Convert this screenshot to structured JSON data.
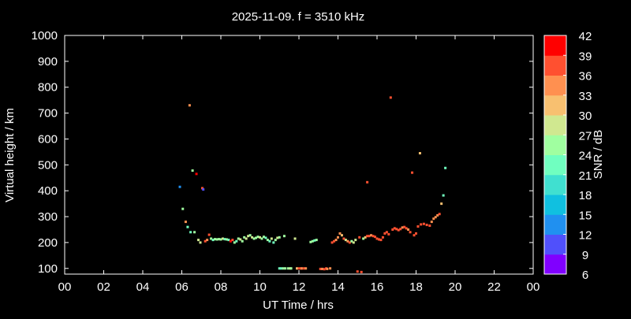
{
  "chart_data": {
    "type": "scatter",
    "title": "2025-11-09. f = 3510 kHz",
    "xlabel": "UT Time / hrs",
    "ylabel": "Virtual height / km",
    "xlim": [
      0,
      24
    ],
    "ylim": [
      78,
      1000
    ],
    "x_ticks": [
      "00",
      "02",
      "04",
      "06",
      "08",
      "10",
      "12",
      "14",
      "16",
      "18",
      "20",
      "22",
      "00"
    ],
    "y_ticks": [
      100,
      200,
      300,
      400,
      500,
      600,
      700,
      800,
      900,
      1000
    ],
    "colorbar": {
      "label": "SNR / dB",
      "ticks": [
        6,
        9,
        12,
        15,
        18,
        21,
        24,
        27,
        30,
        33,
        36,
        39,
        42
      ],
      "min": 6,
      "max": 42,
      "colors": [
        "#8000ff",
        "#5050fb",
        "#2090f0",
        "#10c0e0",
        "#40e0d0",
        "#70ffc0",
        "#a0ffa0",
        "#d0e890",
        "#f8c070",
        "#ff9050",
        "#ff5030",
        "#ff0000"
      ]
    },
    "grid": false,
    "points": [
      [
        5.9,
        415,
        14
      ],
      [
        6.05,
        330,
        24
      ],
      [
        6.2,
        280,
        33
      ],
      [
        6.3,
        260,
        22
      ],
      [
        6.4,
        730,
        33
      ],
      [
        6.45,
        240,
        22
      ],
      [
        6.55,
        478,
        24
      ],
      [
        6.65,
        240,
        24
      ],
      [
        6.75,
        465,
        40
      ],
      [
        6.85,
        210,
        27
      ],
      [
        6.95,
        200,
        27
      ],
      [
        7.05,
        410,
        36
      ],
      [
        7.1,
        405,
        9
      ],
      [
        7.2,
        205,
        38
      ],
      [
        7.3,
        210,
        33
      ],
      [
        7.4,
        230,
        36
      ],
      [
        7.5,
        215,
        24
      ],
      [
        7.6,
        210,
        22
      ],
      [
        7.7,
        213,
        24
      ],
      [
        7.8,
        212,
        24
      ],
      [
        7.9,
        213,
        24
      ],
      [
        8.0,
        212,
        24
      ],
      [
        8.1,
        215,
        27
      ],
      [
        8.2,
        213,
        22
      ],
      [
        8.3,
        212,
        24
      ],
      [
        8.4,
        210,
        22
      ],
      [
        8.5,
        205,
        40
      ],
      [
        8.6,
        210,
        36
      ],
      [
        8.7,
        200,
        24
      ],
      [
        8.8,
        205,
        22
      ],
      [
        8.9,
        215,
        24
      ],
      [
        9.0,
        212,
        27
      ],
      [
        9.1,
        205,
        24
      ],
      [
        9.2,
        220,
        24
      ],
      [
        9.3,
        215,
        27
      ],
      [
        9.4,
        225,
        27
      ],
      [
        9.5,
        228,
        24
      ],
      [
        9.6,
        220,
        27
      ],
      [
        9.7,
        215,
        24
      ],
      [
        9.8,
        218,
        24
      ],
      [
        9.9,
        222,
        24
      ],
      [
        10.0,
        220,
        27
      ],
      [
        10.1,
        215,
        24
      ],
      [
        10.2,
        222,
        24
      ],
      [
        10.3,
        218,
        22
      ],
      [
        10.4,
        210,
        24
      ],
      [
        10.5,
        205,
        22
      ],
      [
        10.6,
        215,
        27
      ],
      [
        10.7,
        200,
        21
      ],
      [
        10.8,
        210,
        24
      ],
      [
        10.9,
        218,
        27
      ],
      [
        11.0,
        220,
        24
      ],
      [
        11.0,
        100,
        22
      ],
      [
        11.1,
        100,
        22
      ],
      [
        11.2,
        100,
        24
      ],
      [
        11.25,
        225,
        24
      ],
      [
        11.3,
        100,
        24
      ],
      [
        11.45,
        100,
        24
      ],
      [
        11.55,
        100,
        27
      ],
      [
        11.6,
        100,
        24
      ],
      [
        11.8,
        215,
        27
      ],
      [
        11.9,
        100,
        30
      ],
      [
        12.0,
        100,
        36
      ],
      [
        12.1,
        100,
        38
      ],
      [
        12.15,
        100,
        33
      ],
      [
        12.25,
        100,
        36
      ],
      [
        12.35,
        100,
        33
      ],
      [
        12.6,
        202,
        24
      ],
      [
        12.7,
        205,
        24
      ],
      [
        12.8,
        208,
        22
      ],
      [
        12.9,
        210,
        24
      ],
      [
        13.1,
        98,
        36
      ],
      [
        13.2,
        98,
        33
      ],
      [
        13.3,
        97,
        38
      ],
      [
        13.4,
        100,
        36
      ],
      [
        13.45,
        98,
        33
      ],
      [
        13.6,
        100,
        33
      ],
      [
        13.7,
        200,
        36
      ],
      [
        13.8,
        205,
        38
      ],
      [
        13.9,
        210,
        33
      ],
      [
        14.0,
        220,
        33
      ],
      [
        14.1,
        235,
        33
      ],
      [
        14.2,
        228,
        30
      ],
      [
        14.3,
        215,
        36
      ],
      [
        14.4,
        210,
        27
      ],
      [
        14.5,
        205,
        33
      ],
      [
        14.6,
        200,
        36
      ],
      [
        14.7,
        205,
        24
      ],
      [
        14.8,
        200,
        27
      ],
      [
        14.9,
        210,
        27
      ],
      [
        15.0,
        88,
        38
      ],
      [
        15.1,
        220,
        38
      ],
      [
        15.2,
        86,
        36
      ],
      [
        15.3,
        215,
        24
      ],
      [
        15.4,
        220,
        30
      ],
      [
        15.5,
        433,
        36
      ],
      [
        15.5,
        225,
        36
      ],
      [
        15.6,
        225,
        36
      ],
      [
        15.7,
        228,
        33
      ],
      [
        15.8,
        225,
        36
      ],
      [
        15.9,
        222,
        36
      ],
      [
        16.0,
        215,
        36
      ],
      [
        16.1,
        212,
        38
      ],
      [
        16.2,
        210,
        38
      ],
      [
        16.3,
        220,
        38
      ],
      [
        16.4,
        235,
        38
      ],
      [
        16.5,
        240,
        36
      ],
      [
        16.6,
        232,
        36
      ],
      [
        16.7,
        760,
        36
      ],
      [
        16.8,
        250,
        38
      ],
      [
        16.9,
        255,
        38
      ],
      [
        17.0,
        252,
        38
      ],
      [
        17.1,
        248,
        36
      ],
      [
        17.2,
        252,
        36
      ],
      [
        17.3,
        258,
        33
      ],
      [
        17.4,
        260,
        36
      ],
      [
        17.5,
        255,
        36
      ],
      [
        17.6,
        250,
        33
      ],
      [
        17.7,
        240,
        36
      ],
      [
        17.8,
        470,
        36
      ],
      [
        17.9,
        228,
        36
      ],
      [
        18.0,
        235,
        36
      ],
      [
        18.1,
        262,
        38
      ],
      [
        18.2,
        545,
        30
      ],
      [
        18.25,
        270,
        38
      ],
      [
        18.4,
        272,
        36
      ],
      [
        18.55,
        268,
        36
      ],
      [
        18.7,
        265,
        36
      ],
      [
        18.8,
        280,
        33
      ],
      [
        18.9,
        292,
        33
      ],
      [
        19.0,
        298,
        33
      ],
      [
        19.1,
        305,
        33
      ],
      [
        19.2,
        310,
        38
      ],
      [
        19.3,
        350,
        30
      ],
      [
        19.4,
        382,
        21
      ],
      [
        19.5,
        488,
        21
      ]
    ]
  }
}
